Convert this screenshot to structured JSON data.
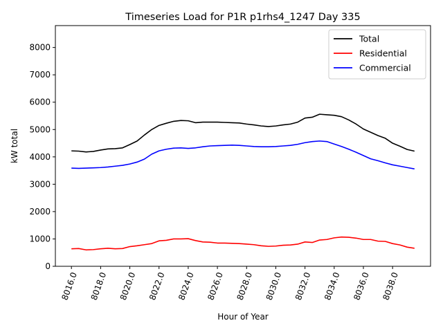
{
  "chart_data": {
    "type": "line",
    "title": "Timeseries Load for P1R p1rhs4_1247  Day 335",
    "xlabel": "Hour of Year",
    "ylabel": "kW total",
    "xlim": [
      8014.9,
      8040.6
    ],
    "ylim": [
      0,
      8800
    ],
    "x_ticks": [
      8016,
      8018,
      8020,
      8022,
      8024,
      8026,
      8028,
      8030,
      8032,
      8034,
      8036,
      8038
    ],
    "x_tick_labels": [
      "8016.0",
      "8018.0",
      "8020.0",
      "8022.0",
      "8024.0",
      "8026.0",
      "8028.0",
      "8030.0",
      "8032.0",
      "8034.0",
      "8036.0",
      "8038.0"
    ],
    "y_ticks": [
      0,
      1000,
      2000,
      3000,
      4000,
      5000,
      6000,
      7000,
      8000
    ],
    "y_tick_labels": [
      "0",
      "1000",
      "2000",
      "3000",
      "4000",
      "5000",
      "6000",
      "7000",
      "8000"
    ],
    "legend_position": "top-right",
    "x": [
      8016.0,
      8016.5,
      8017.0,
      8017.5,
      8018.0,
      8018.5,
      8019.0,
      8019.5,
      8020.0,
      8020.5,
      8021.0,
      8021.5,
      8022.0,
      8022.5,
      8023.0,
      8023.5,
      8024.0,
      8024.5,
      8025.0,
      8025.5,
      8026.0,
      8026.5,
      8027.0,
      8027.5,
      8028.0,
      8028.5,
      8029.0,
      8029.5,
      8030.0,
      8030.5,
      8031.0,
      8031.5,
      8032.0,
      8032.5,
      8033.0,
      8033.5,
      8034.0,
      8034.5,
      8035.0,
      8035.5,
      8036.0,
      8036.5,
      8037.0,
      8037.5,
      8038.0,
      8038.5,
      8039.0,
      8039.5
    ],
    "series": [
      {
        "name": "Total",
        "color": "#000000",
        "values": [
          4220,
          4210,
          4180,
          4200,
          4250,
          4290,
          4300,
          4330,
          4450,
          4580,
          4800,
          5000,
          5150,
          5230,
          5300,
          5330,
          5320,
          5250,
          5270,
          5270,
          5270,
          5260,
          5250,
          5240,
          5200,
          5170,
          5130,
          5110,
          5130,
          5170,
          5200,
          5270,
          5420,
          5450,
          5560,
          5540,
          5520,
          5470,
          5350,
          5200,
          5020,
          4900,
          4780,
          4680,
          4500,
          4390,
          4270,
          4210
        ]
      },
      {
        "name": "Residential",
        "color": "#ff0000",
        "values": [
          640,
          650,
          600,
          610,
          640,
          660,
          640,
          650,
          720,
          750,
          790,
          830,
          930,
          950,
          1000,
          1000,
          1010,
          940,
          890,
          880,
          850,
          850,
          840,
          830,
          810,
          790,
          750,
          730,
          740,
          770,
          780,
          810,
          890,
          870,
          960,
          980,
          1040,
          1070,
          1060,
          1030,
          980,
          980,
          920,
          910,
          830,
          780,
          700,
          660
        ]
      },
      {
        "name": "Commercial",
        "color": "#0000ff",
        "values": [
          3590,
          3580,
          3590,
          3600,
          3610,
          3630,
          3660,
          3690,
          3740,
          3810,
          3920,
          4100,
          4220,
          4280,
          4320,
          4330,
          4310,
          4330,
          4370,
          4400,
          4410,
          4420,
          4430,
          4420,
          4400,
          4380,
          4370,
          4370,
          4380,
          4400,
          4420,
          4460,
          4520,
          4560,
          4580,
          4560,
          4470,
          4380,
          4280,
          4170,
          4050,
          3930,
          3860,
          3780,
          3710,
          3660,
          3610,
          3560
        ]
      }
    ]
  }
}
